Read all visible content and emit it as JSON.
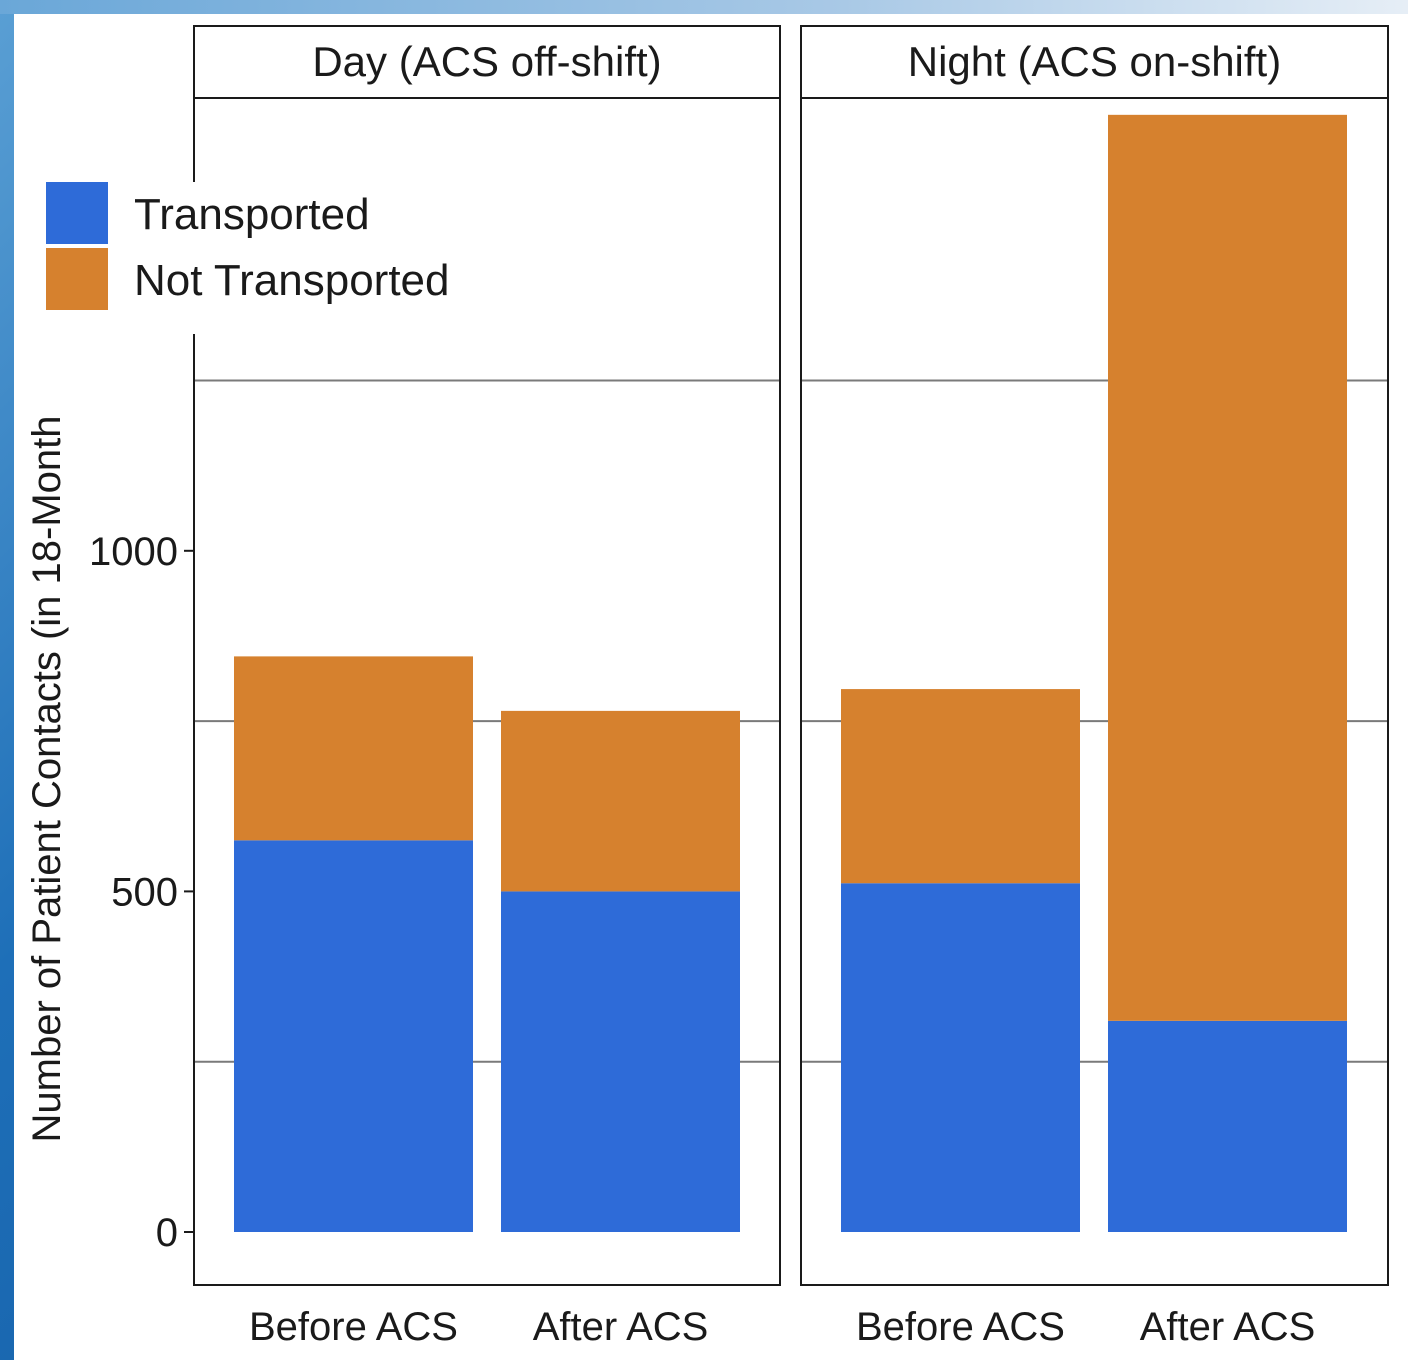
{
  "chart_data": {
    "type": "bar",
    "stacked": true,
    "ylabel": "Number of Patient Contacts (in 18-Month",
    "ylim": [
      0,
      1750
    ],
    "yticks": [
      0,
      500,
      1000
    ],
    "grid": true,
    "legend_position": "top-left",
    "categories": [
      "Before ACS",
      "After ACS"
    ],
    "panels": [
      {
        "title": "Day (ACS off-shift)",
        "series": [
          {
            "name": "Transported",
            "color": "#2e6bd8",
            "values": [
              575,
              500
            ]
          },
          {
            "name": "Not Transported",
            "color": "#d6812e",
            "values": [
              270,
              265
            ]
          }
        ]
      },
      {
        "title": "Night (ACS on-shift)",
        "series": [
          {
            "name": "Transported",
            "color": "#2e6bd8",
            "values": [
              512,
              310
            ]
          },
          {
            "name": "Not Transported",
            "color": "#d6812e",
            "values": [
              285,
              1330
            ]
          }
        ]
      }
    ]
  },
  "legend": {
    "items": [
      {
        "label": "Transported",
        "color": "#2e6bd8"
      },
      {
        "label": "Not Transported",
        "color": "#d6812e"
      }
    ]
  }
}
